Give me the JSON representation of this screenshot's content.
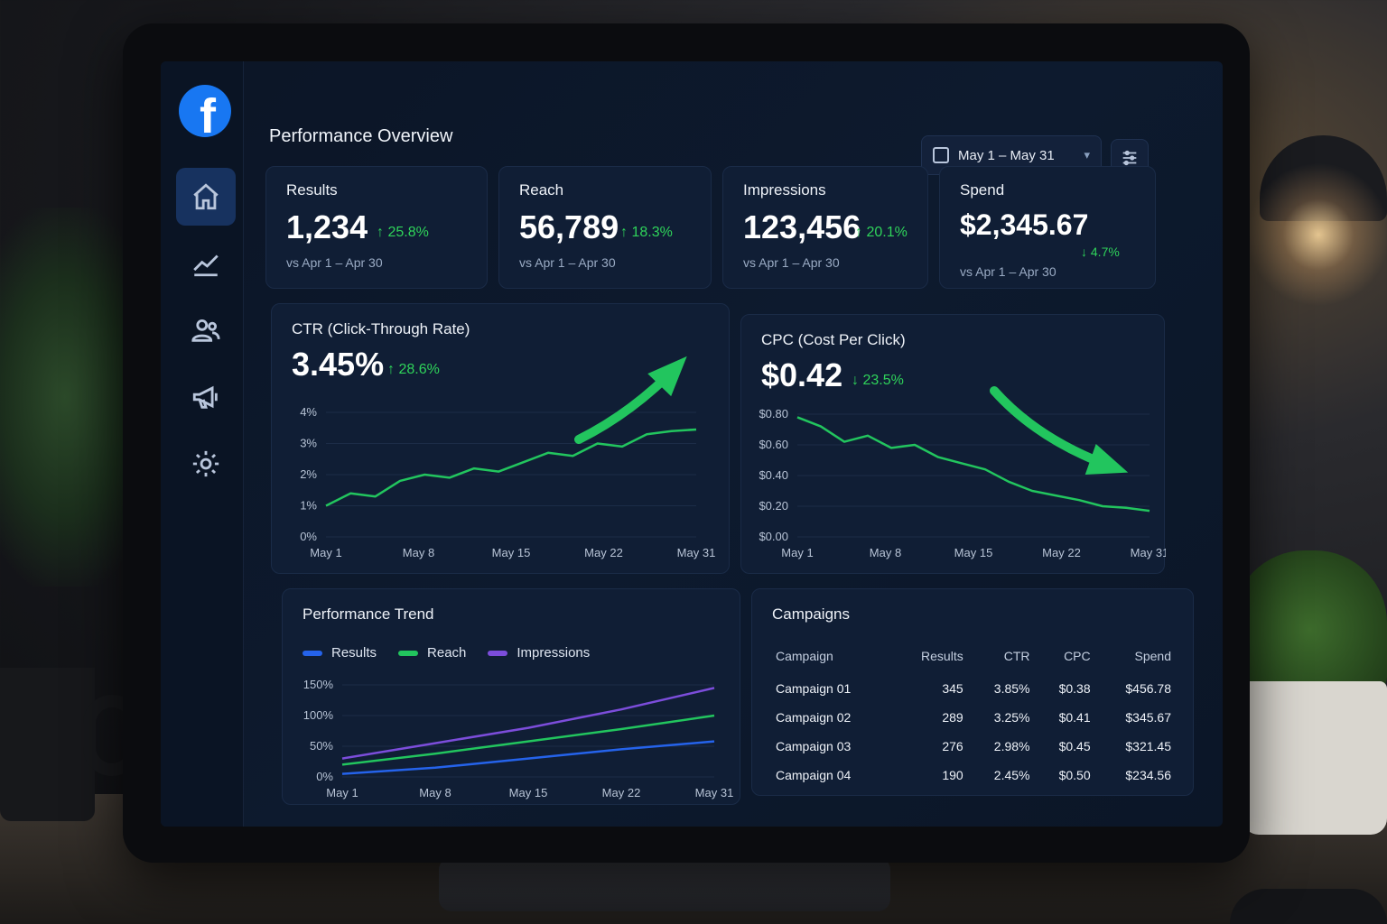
{
  "app": {
    "logo": "facebook-logo"
  },
  "sidebar": {
    "items": [
      {
        "icon": "home-icon",
        "active": true
      },
      {
        "icon": "trend-chart-icon",
        "active": false
      },
      {
        "icon": "users-icon",
        "active": false
      },
      {
        "icon": "megaphone-icon",
        "active": false
      },
      {
        "icon": "gear-icon",
        "active": false
      }
    ]
  },
  "header": {
    "title": "Performance Overview",
    "date_range": "May 1 – May 31",
    "filter_icon": "sliders-icon"
  },
  "kpis": [
    {
      "label": "Results",
      "value": "1,234",
      "delta": "↑ 25.8%",
      "compare": "vs Apr 1 – Apr 30"
    },
    {
      "label": "Reach",
      "value": "56,789",
      "delta": "↑ 18.3%",
      "compare": "vs Apr 1 – Apr 30"
    },
    {
      "label": "Impressions",
      "value": "123,456",
      "delta": "↑ 20.1%",
      "compare": "vs Apr 1 – Apr 30"
    },
    {
      "label": "Spend",
      "value": "$2,345.67",
      "delta": "↓ 4.7%",
      "compare": "vs Apr 1 – Apr 30"
    }
  ],
  "ctr": {
    "title": "CTR (Click-Through Rate)",
    "value": "3.45%",
    "delta": "↑ 28.6%",
    "y_ticks": [
      "4%",
      "3%",
      "2%",
      "1%",
      "0%"
    ],
    "x_ticks": [
      "May 1",
      "May 8",
      "May 15",
      "May 22",
      "May 31"
    ]
  },
  "cpc": {
    "title": "CPC (Cost Per Click)",
    "value": "$0.42",
    "delta": "↓ 23.5%",
    "y_ticks": [
      "$0.80",
      "$0.60",
      "$0.40",
      "$0.20",
      "$0.00"
    ],
    "x_ticks": [
      "May 1",
      "May 8",
      "May 15",
      "May 22",
      "May 31"
    ]
  },
  "trend": {
    "title": "Performance Trend",
    "legend": [
      "Results",
      "Reach",
      "Impressions"
    ],
    "y_ticks": [
      "150%",
      "100%",
      "50%",
      "0%"
    ],
    "x_ticks": [
      "May 1",
      "May 8",
      "May 15",
      "May 22",
      "May 31"
    ]
  },
  "campaigns": {
    "title": "Campaigns",
    "columns": [
      "Campaign",
      "Results",
      "CTR",
      "CPC",
      "Spend"
    ],
    "rows": [
      [
        "Campaign 01",
        "345",
        "3.85%",
        "$0.38",
        "$456.78"
      ],
      [
        "Campaign 02",
        "289",
        "3.25%",
        "$0.41",
        "$345.67"
      ],
      [
        "Campaign 03",
        "276",
        "2.98%",
        "$0.45",
        "$321.45"
      ],
      [
        "Campaign 04",
        "190",
        "2.45%",
        "$0.50",
        "$234.56"
      ]
    ]
  },
  "colors": {
    "accent": "#1877f2",
    "positive": "#2fd35a",
    "results": "#2563eb",
    "reach": "#22c55e",
    "impressions": "#7c4ddb"
  },
  "chart_data": [
    {
      "type": "line",
      "x": [
        "May 1",
        "May 3",
        "May 5",
        "May 7",
        "May 9",
        "May 11",
        "May 13",
        "May 15",
        "May 17",
        "May 19",
        "May 21",
        "May 23",
        "May 25",
        "May 27",
        "May 29",
        "May 31"
      ],
      "values": [
        1.0,
        1.4,
        1.3,
        1.8,
        2.0,
        1.9,
        2.2,
        2.1,
        2.4,
        2.7,
        2.6,
        3.0,
        2.9,
        3.3,
        3.4,
        3.45
      ],
      "ylim": [
        0,
        4
      ]
    },
    {
      "type": "line",
      "x": [
        "May 1",
        "May 3",
        "May 5",
        "May 7",
        "May 9",
        "May 11",
        "May 13",
        "May 15",
        "May 17",
        "May 19",
        "May 21",
        "May 23",
        "May 25",
        "May 27",
        "May 29",
        "May 31"
      ],
      "values": [
        0.78,
        0.72,
        0.62,
        0.66,
        0.58,
        0.6,
        0.52,
        0.48,
        0.44,
        0.36,
        0.3,
        0.27,
        0.24,
        0.2,
        0.19,
        0.17
      ],
      "ylim": [
        0,
        0.8
      ]
    },
    {
      "type": "line",
      "x": [
        "May 1",
        "May 8",
        "May 15",
        "May 22",
        "May 31"
      ],
      "series": [
        {
          "name": "Results",
          "values": [
            5,
            15,
            30,
            45,
            58
          ]
        },
        {
          "name": "Reach",
          "values": [
            20,
            38,
            58,
            78,
            100
          ]
        },
        {
          "name": "Impressions",
          "values": [
            30,
            55,
            80,
            110,
            145
          ]
        }
      ],
      "ylim": [
        0,
        150
      ]
    }
  ]
}
